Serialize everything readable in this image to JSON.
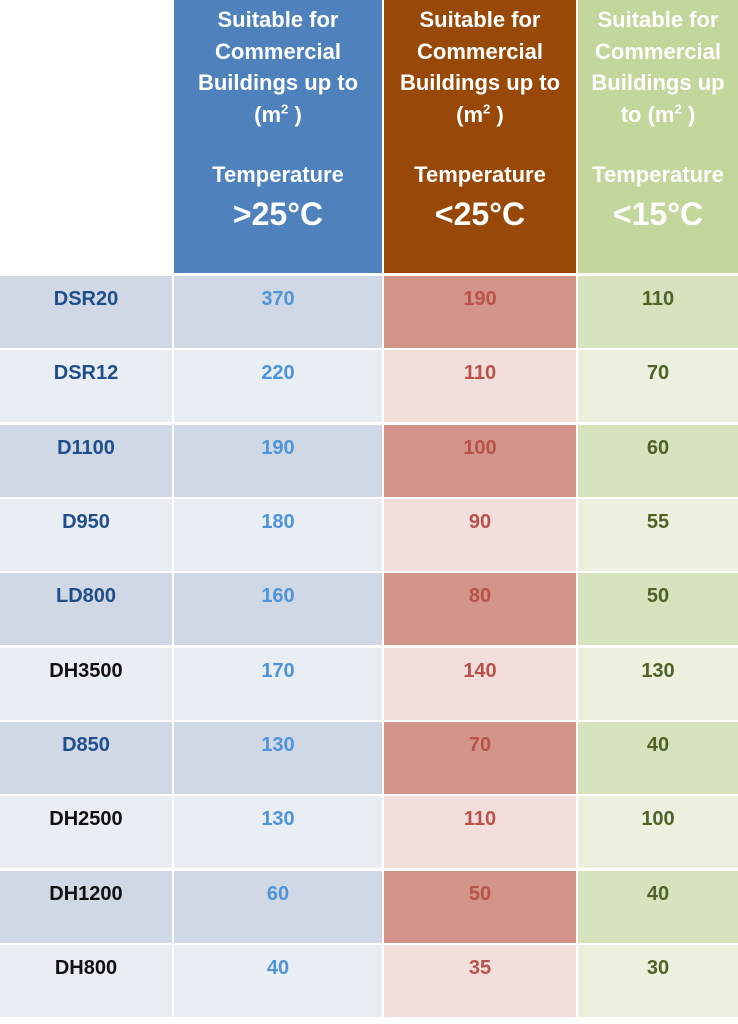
{
  "headers": [
    {
      "suitable_line1": "Suitable for",
      "suitable_line2": "Commercial",
      "suitable_line3": "Buildings up to",
      "suitable_line4_pre": "(m",
      "suitable_sup": "2",
      "suitable_line4_post": " )",
      "temp_label": "Temperature",
      "temp_value": ">25°C",
      "color": "#4f81bd"
    },
    {
      "suitable_line1": "Suitable for",
      "suitable_line2": "Commercial",
      "suitable_line3": "Buildings up to",
      "suitable_line4_pre": "(m",
      "suitable_sup": "2",
      "suitable_line4_post": " )",
      "temp_label": "Temperature",
      "temp_value": "<25°C",
      "color": "#984807"
    },
    {
      "suitable_line1": "Suitable for",
      "suitable_line2": "Commercial",
      "suitable_line3": "Buildings up",
      "suitable_line4_pre": "to (m",
      "suitable_sup": "2",
      "suitable_line4_post": " )",
      "temp_label": "Temperature",
      "temp_value": "<15°C",
      "color": "#c3d69b"
    }
  ],
  "rows": [
    {
      "model": "DSR20",
      "gt25": "370",
      "lt25": "190",
      "lt15": "110",
      "model_color": "blue"
    },
    {
      "model": "DSR12",
      "gt25": "220",
      "lt25": "110",
      "lt15": "70",
      "model_color": "blue"
    },
    {
      "model": "D1100",
      "gt25": "190",
      "lt25": "100",
      "lt15": "60",
      "model_color": "blue"
    },
    {
      "model": "D950",
      "gt25": "180",
      "lt25": "90",
      "lt15": "55",
      "model_color": "blue"
    },
    {
      "model": "LD800",
      "gt25": "160",
      "lt25": "80",
      "lt15": "50",
      "model_color": "blue"
    },
    {
      "model": "DH3500",
      "gt25": "170",
      "lt25": "140",
      "lt15": "130",
      "model_color": "black"
    },
    {
      "model": "D850",
      "gt25": "130",
      "lt25": "70",
      "lt15": "40",
      "model_color": "blue"
    },
    {
      "model": "DH2500",
      "gt25": "130",
      "lt25": "110",
      "lt15": "100",
      "model_color": "black"
    },
    {
      "model": "DH1200",
      "gt25": "60",
      "lt25": "50",
      "lt15": "40",
      "model_color": "black"
    },
    {
      "model": "DH800",
      "gt25": "40",
      "lt25": "35",
      "lt15": "30",
      "model_color": "black"
    }
  ]
}
